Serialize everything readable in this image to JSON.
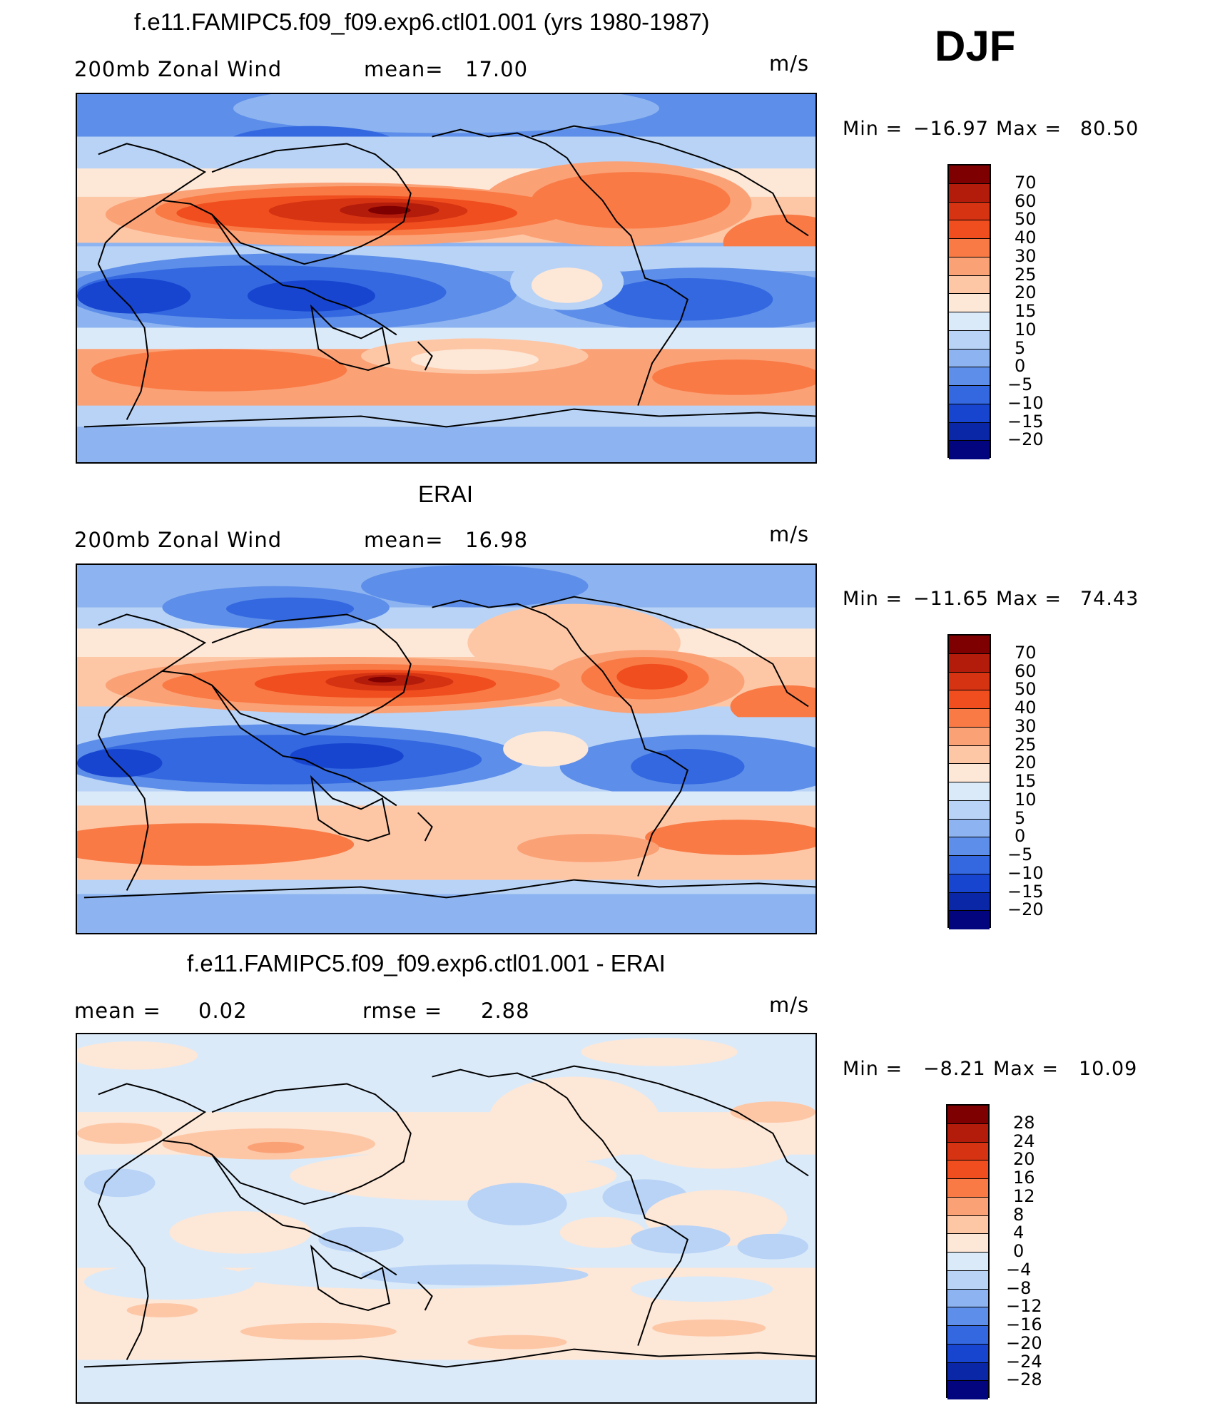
{
  "season": "DJF",
  "panels": [
    {
      "title": "f.e11.FAMIPC5.f09_f09.exp6.ctl01.001 (yrs 1980-1987)",
      "left_label": "200mb Zonal Wind",
      "stat_label": "mean=",
      "stat_value": "17.00",
      "units": "m/s",
      "min_label": "Min =",
      "min_value": "−16.97",
      "max_label": "Max =",
      "max_value": "80.50",
      "colorbar_ticks": [
        "70",
        "60",
        "50",
        "40",
        "30",
        "25",
        "20",
        "15",
        "10",
        "5",
        "0",
        "−5",
        "−10",
        "−15",
        "−20"
      ]
    },
    {
      "title": "ERAI",
      "left_label": "200mb Zonal Wind",
      "stat_label": "mean=",
      "stat_value": "16.98",
      "units": "m/s",
      "min_label": "Min =",
      "min_value": "−11.65",
      "max_label": "Max =",
      "max_value": "74.43",
      "colorbar_ticks": [
        "70",
        "60",
        "50",
        "40",
        "30",
        "25",
        "20",
        "15",
        "10",
        "5",
        "0",
        "−5",
        "−10",
        "−15",
        "−20"
      ]
    },
    {
      "title": "f.e11.FAMIPC5.f09_f09.exp6.ctl01.001 - ERAI",
      "left_label": "mean =",
      "left_value": "0.02",
      "stat_label": "rmse =",
      "stat_value": "2.88",
      "units": "m/s",
      "min_label": "Min =",
      "min_value": "−8.21",
      "max_label": "Max =",
      "max_value": "10.09",
      "colorbar_ticks": [
        "28",
        "24",
        "20",
        "16",
        "12",
        "8",
        "4",
        "0",
        "−4",
        "−8",
        "−12",
        "−16",
        "−20",
        "−24",
        "−28"
      ]
    }
  ],
  "colors": {
    "abs_scale": [
      "#7f0000",
      "#b31b0b",
      "#d53312",
      "#f04e1f",
      "#f97a45",
      "#fba176",
      "#fdc7a6",
      "#fde7d7",
      "#dbeaf9",
      "#b8d3f6",
      "#8db4f0",
      "#5d8ee9",
      "#3468e0",
      "#1745cf",
      "#0a27a8",
      "#02057d"
    ],
    "diff_scale": [
      "#7f0000",
      "#b31b0b",
      "#d53312",
      "#f04e1f",
      "#f97a45",
      "#fba176",
      "#fdc7a6",
      "#fde7d7",
      "#dbeaf9",
      "#b8d3f6",
      "#8db4f0",
      "#5d8ee9",
      "#3468e0",
      "#1745cf",
      "#0a27a8",
      "#02057d"
    ]
  }
}
